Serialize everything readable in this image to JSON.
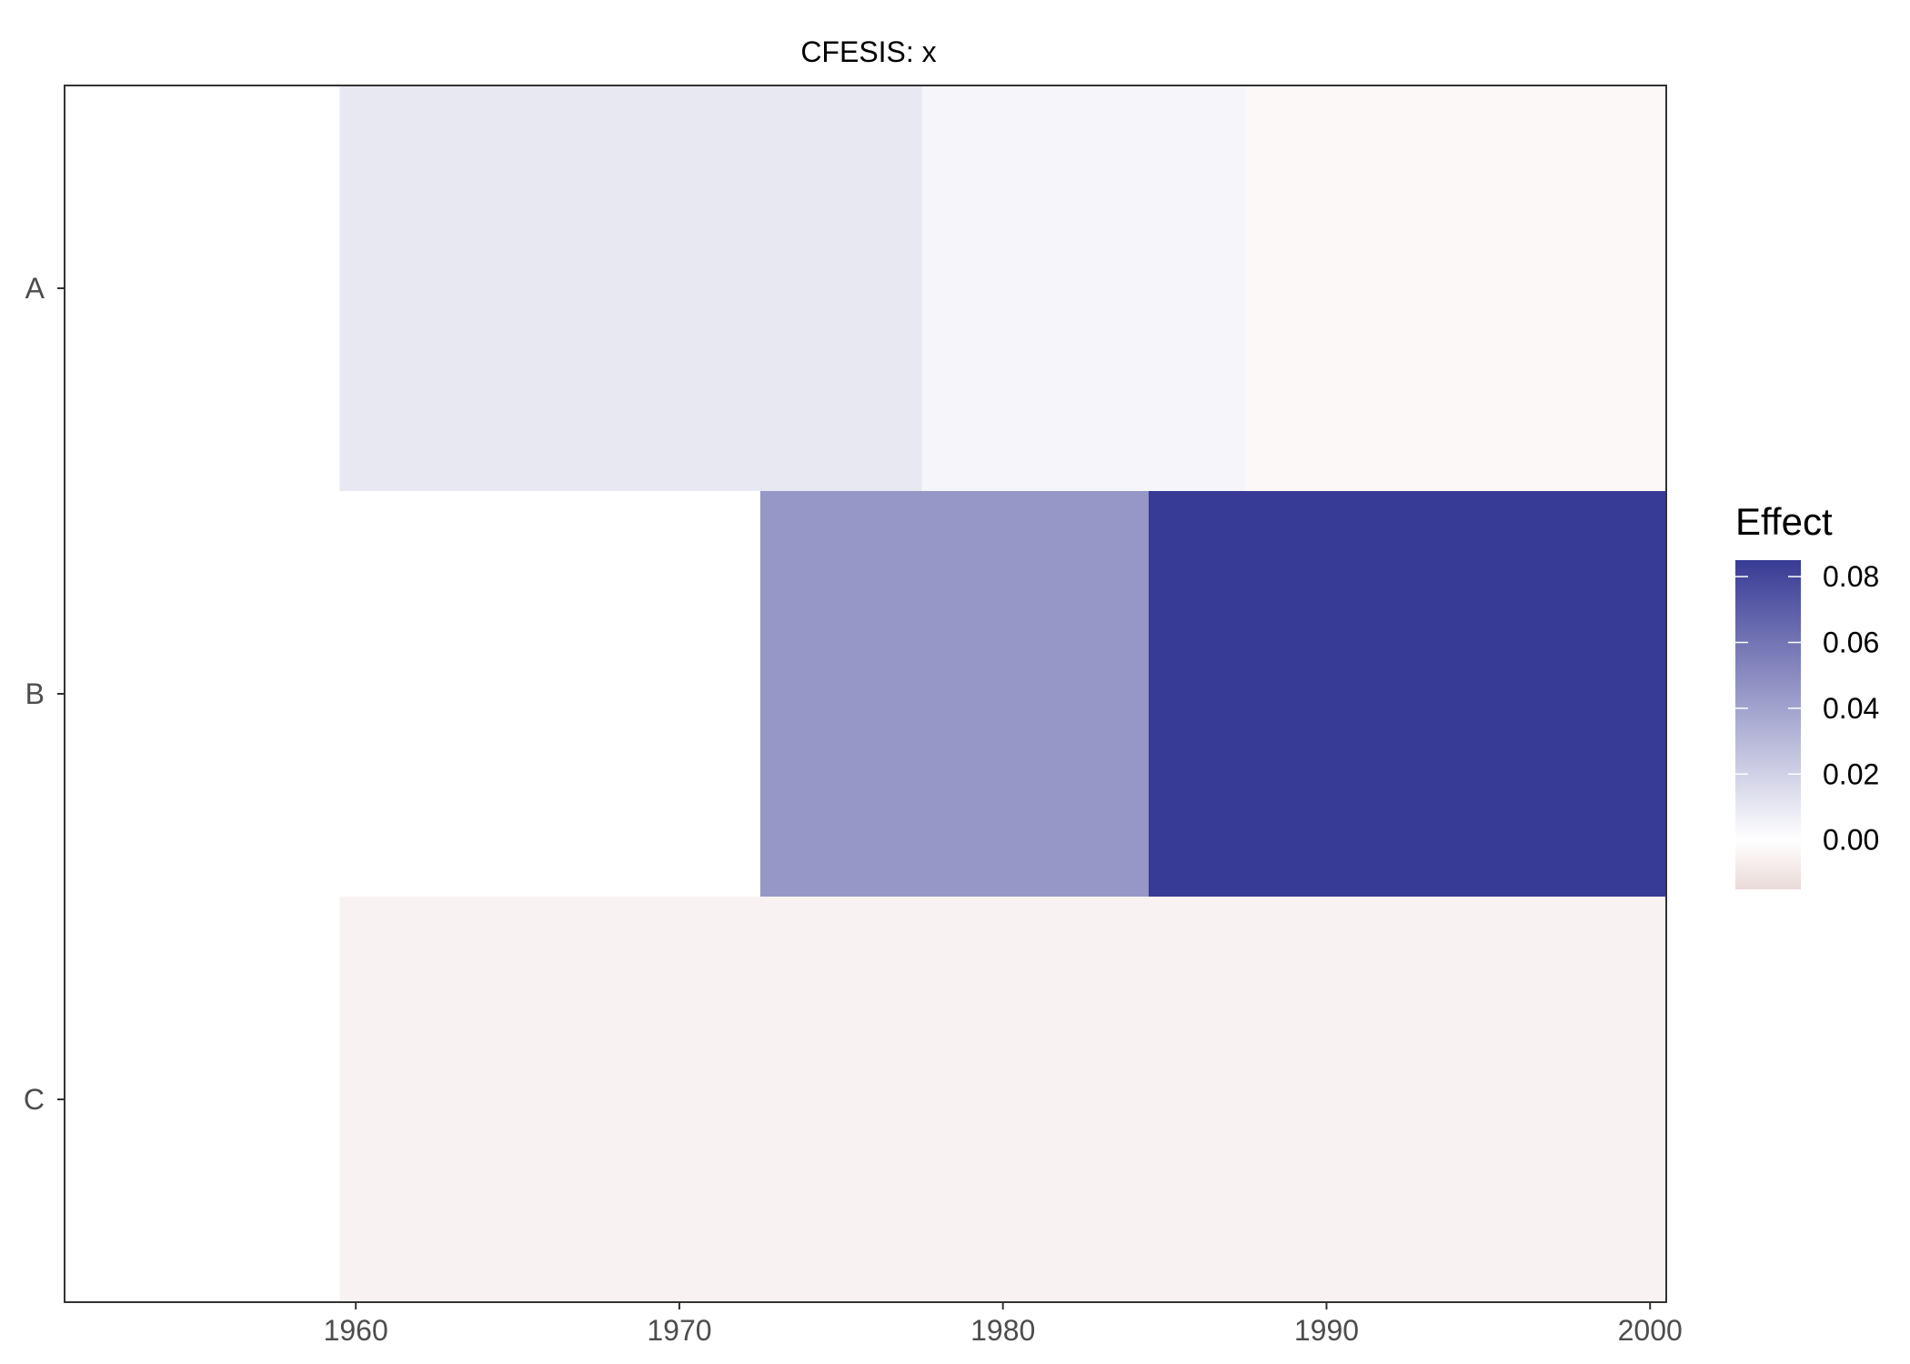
{
  "chart_data": {
    "type": "heatmap",
    "title": "CFESIS: x",
    "xlabel": "",
    "ylabel": "",
    "x_ticks": [
      1960,
      1970,
      1980,
      1990,
      2000
    ],
    "xlim": [
      1951,
      2000.5
    ],
    "y_categories": [
      "A",
      "B",
      "C"
    ],
    "segments": [
      {
        "row": "A",
        "x_start": 1960,
        "x_end": 1977,
        "value": 0.01
      },
      {
        "row": "A",
        "x_start": 1978,
        "x_end": 1987,
        "value": 0.004
      },
      {
        "row": "A",
        "x_start": 1988,
        "x_end": 2000,
        "value": -0.003
      },
      {
        "row": "B",
        "x_start": 1960,
        "x_end": 1972,
        "value": 0.0
      },
      {
        "row": "B",
        "x_start": 1973,
        "x_end": 1984,
        "value": 0.045
      },
      {
        "row": "B",
        "x_start": 1985,
        "x_end": 2000,
        "value": 0.085
      },
      {
        "row": "C",
        "x_start": 1960,
        "x_end": 2000,
        "value": -0.005
      }
    ],
    "legend": {
      "title": "Effect",
      "ticks": [
        "0.00",
        "0.02",
        "0.04",
        "0.06",
        "0.08"
      ],
      "tick_values": [
        0.0,
        0.02,
        0.04,
        0.06,
        0.08
      ],
      "range": [
        -0.015,
        0.085
      ],
      "placement": "right"
    },
    "colors": {
      "low": "#eadad8",
      "mid": "#ffffff",
      "high": "#383b95",
      "panel_border": "#333333"
    }
  }
}
